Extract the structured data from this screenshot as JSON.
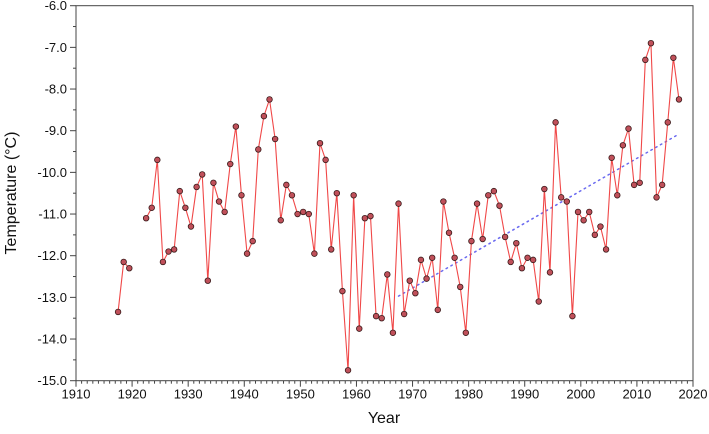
{
  "chart_data": {
    "type": "line",
    "title": "",
    "xlabel": "Year",
    "ylabel": "Temperature (°C)",
    "xlim": [
      1910,
      2020
    ],
    "ylim": [
      -15.0,
      -6.0
    ],
    "x_ticks": [
      "1910",
      "1920",
      "1930",
      "1940",
      "1950",
      "1960",
      "1970",
      "1980",
      "1990",
      "2000",
      "2010",
      "2020"
    ],
    "y_ticks": [
      "-6.0",
      "-7.0",
      "-8.0",
      "-9.0",
      "-10.0",
      "-11.0",
      "-12.0",
      "-13.0",
      "-14.0",
      "-15.0"
    ],
    "grid": false,
    "colors": {
      "line": "#f04848",
      "marker": "#c0505a",
      "marker_edge": "#3a1a1a",
      "trend": "#6a6af0"
    },
    "series": [
      {
        "x": [
          1917,
          1918,
          1919,
          1922,
          1923,
          1924,
          1925,
          1926,
          1927,
          1928,
          1929,
          1930,
          1931,
          1932,
          1933,
          1934,
          1935,
          1936,
          1937,
          1938,
          1939,
          1940,
          1941,
          1942,
          1943,
          1944,
          1945,
          1946,
          1947,
          1948,
          1949,
          1950,
          1951,
          1952,
          1953,
          1954,
          1955,
          1956,
          1957,
          1958,
          1959,
          1960,
          1961,
          1962,
          1963,
          1964,
          1965,
          1966,
          1967,
          1968,
          1969,
          1970,
          1971,
          1972,
          1973,
          1974,
          1975,
          1976,
          1977,
          1978,
          1979,
          1980,
          1981,
          1982,
          1983,
          1984,
          1985,
          1986,
          1987,
          1988,
          1989,
          1990,
          1991,
          1992,
          1993,
          1994,
          1995,
          1996,
          1997,
          1998,
          1999,
          2000,
          2001,
          2002,
          2003,
          2004,
          2005,
          2006,
          2007,
          2008,
          2009,
          2010,
          2011,
          2012,
          2013,
          2014,
          2015,
          2016,
          2017
        ],
        "y": [
          -13.35,
          -12.15,
          -12.3,
          -11.1,
          -10.85,
          -9.7,
          -12.15,
          -11.9,
          -11.85,
          -10.45,
          -10.85,
          -11.3,
          -10.35,
          -10.05,
          -12.6,
          -10.25,
          -10.7,
          -10.95,
          -9.8,
          -8.9,
          -10.55,
          -11.95,
          -11.65,
          -9.45,
          -8.65,
          -8.25,
          -9.2,
          -11.15,
          -10.3,
          -10.55,
          -11.0,
          -10.95,
          -11.0,
          -11.95,
          -9.3,
          -9.7,
          -11.85,
          -10.5,
          -12.85,
          -14.75,
          -10.55,
          -13.75,
          -11.1,
          -11.05,
          -13.45,
          -13.5,
          -12.45,
          -13.85,
          -10.75,
          -13.4,
          -12.6,
          -12.9,
          -12.1,
          -12.55,
          -12.05,
          -13.3,
          -10.7,
          -11.45,
          -12.05,
          -12.75,
          -13.85,
          -11.65,
          -10.75,
          -11.6,
          -10.55,
          -10.45,
          -10.8,
          -11.55,
          -12.15,
          -11.7,
          -12.3,
          -12.05,
          -12.1,
          -13.1,
          -10.4,
          -12.4,
          -8.8,
          -10.6,
          -10.7,
          -13.45,
          -10.95,
          -11.15,
          -10.95,
          -11.5,
          -11.3,
          -11.85,
          -9.65,
          -10.55,
          -9.35,
          -8.95,
          -10.3,
          -10.25,
          -7.3,
          -6.9,
          -10.6,
          -10.3,
          -8.8,
          -7.25,
          -8.25
        ]
      }
    ],
    "trendline": {
      "x": [
        1967,
        2017
      ],
      "y": [
        -12.97,
        -9.08
      ],
      "style": "dotted"
    }
  }
}
